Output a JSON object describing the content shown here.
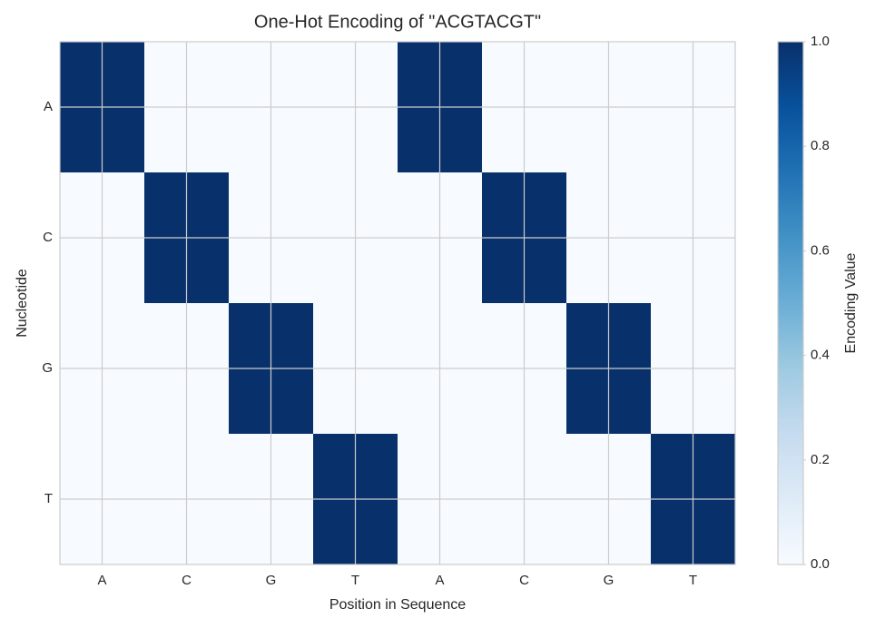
{
  "chart_data": {
    "type": "heatmap",
    "title": "One-Hot Encoding of \"ACGTACGT\"",
    "xlabel": "Position in Sequence",
    "ylabel": "Nucleotide",
    "x_categories": [
      "A",
      "C",
      "G",
      "T",
      "A",
      "C",
      "G",
      "T"
    ],
    "y_categories": [
      "A",
      "C",
      "G",
      "T"
    ],
    "values": [
      [
        1,
        0,
        0,
        0,
        1,
        0,
        0,
        0
      ],
      [
        0,
        1,
        0,
        0,
        0,
        1,
        0,
        0
      ],
      [
        0,
        0,
        1,
        0,
        0,
        0,
        1,
        0
      ],
      [
        0,
        0,
        0,
        1,
        0,
        0,
        0,
        1
      ]
    ],
    "colormap": [
      "#f7fbff",
      "#deebf7",
      "#c6dbef",
      "#9ecae1",
      "#6baed6",
      "#4292c6",
      "#2171b5",
      "#08519c",
      "#08306b"
    ],
    "colorbar_label": "Encoding Value",
    "clim": [
      0,
      1
    ],
    "colorbar_ticks": [
      {
        "value": 0,
        "label": "0.0"
      },
      {
        "value": 0.2,
        "label": "0.2"
      },
      {
        "value": 0.4,
        "label": "0.4"
      },
      {
        "value": 0.6,
        "label": "0.6"
      },
      {
        "value": 0.8,
        "label": "0.8"
      },
      {
        "value": 1,
        "label": "1.0"
      }
    ],
    "grid": true
  }
}
